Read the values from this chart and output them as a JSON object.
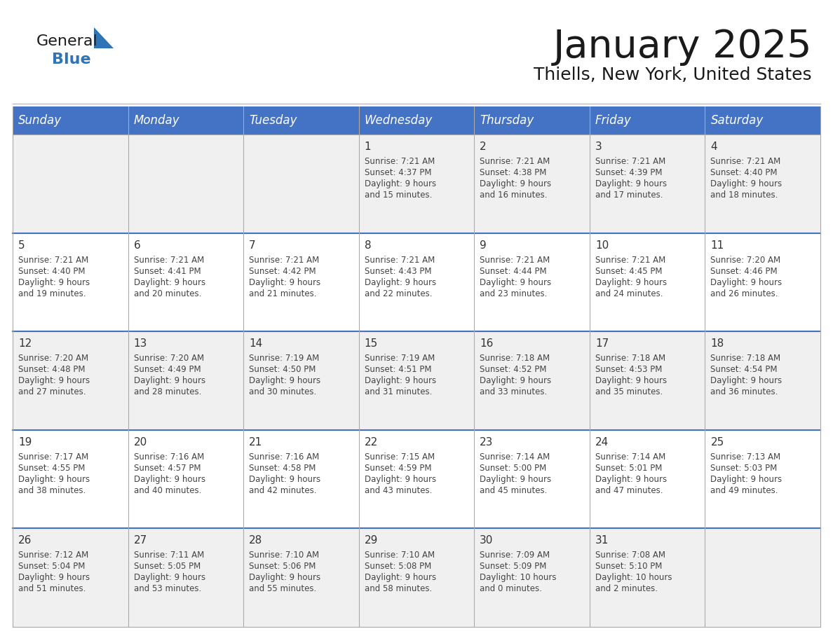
{
  "title": "January 2025",
  "subtitle": "Thiells, New York, United States",
  "days_of_week": [
    "Sunday",
    "Monday",
    "Tuesday",
    "Wednesday",
    "Thursday",
    "Friday",
    "Saturday"
  ],
  "header_bg_color": "#4472C4",
  "header_text_color": "#FFFFFF",
  "cell_bg_even": "#F0F0F0",
  "cell_bg_odd": "#FFFFFF",
  "cell_text_color": "#444444",
  "day_num_color": "#333333",
  "grid_line_color": "#AAAAAA",
  "title_color": "#1A1A1A",
  "subtitle_color": "#1A1A1A",
  "logo_black_color": "#1A1A1A",
  "logo_blue_color": "#2E75B6",
  "calendar_data": [
    {
      "week": 0,
      "dow": 3,
      "day": 1,
      "sunrise": "7:21 AM",
      "sunset": "4:37 PM",
      "daylight": "9 hours and 15 minutes."
    },
    {
      "week": 0,
      "dow": 4,
      "day": 2,
      "sunrise": "7:21 AM",
      "sunset": "4:38 PM",
      "daylight": "9 hours and 16 minutes."
    },
    {
      "week": 0,
      "dow": 5,
      "day": 3,
      "sunrise": "7:21 AM",
      "sunset": "4:39 PM",
      "daylight": "9 hours and 17 minutes."
    },
    {
      "week": 0,
      "dow": 6,
      "day": 4,
      "sunrise": "7:21 AM",
      "sunset": "4:40 PM",
      "daylight": "9 hours and 18 minutes."
    },
    {
      "week": 1,
      "dow": 0,
      "day": 5,
      "sunrise": "7:21 AM",
      "sunset": "4:40 PM",
      "daylight": "9 hours and 19 minutes."
    },
    {
      "week": 1,
      "dow": 1,
      "day": 6,
      "sunrise": "7:21 AM",
      "sunset": "4:41 PM",
      "daylight": "9 hours and 20 minutes."
    },
    {
      "week": 1,
      "dow": 2,
      "day": 7,
      "sunrise": "7:21 AM",
      "sunset": "4:42 PM",
      "daylight": "9 hours and 21 minutes."
    },
    {
      "week": 1,
      "dow": 3,
      "day": 8,
      "sunrise": "7:21 AM",
      "sunset": "4:43 PM",
      "daylight": "9 hours and 22 minutes."
    },
    {
      "week": 1,
      "dow": 4,
      "day": 9,
      "sunrise": "7:21 AM",
      "sunset": "4:44 PM",
      "daylight": "9 hours and 23 minutes."
    },
    {
      "week": 1,
      "dow": 5,
      "day": 10,
      "sunrise": "7:21 AM",
      "sunset": "4:45 PM",
      "daylight": "9 hours and 24 minutes."
    },
    {
      "week": 1,
      "dow": 6,
      "day": 11,
      "sunrise": "7:20 AM",
      "sunset": "4:46 PM",
      "daylight": "9 hours and 26 minutes."
    },
    {
      "week": 2,
      "dow": 0,
      "day": 12,
      "sunrise": "7:20 AM",
      "sunset": "4:48 PM",
      "daylight": "9 hours and 27 minutes."
    },
    {
      "week": 2,
      "dow": 1,
      "day": 13,
      "sunrise": "7:20 AM",
      "sunset": "4:49 PM",
      "daylight": "9 hours and 28 minutes."
    },
    {
      "week": 2,
      "dow": 2,
      "day": 14,
      "sunrise": "7:19 AM",
      "sunset": "4:50 PM",
      "daylight": "9 hours and 30 minutes."
    },
    {
      "week": 2,
      "dow": 3,
      "day": 15,
      "sunrise": "7:19 AM",
      "sunset": "4:51 PM",
      "daylight": "9 hours and 31 minutes."
    },
    {
      "week": 2,
      "dow": 4,
      "day": 16,
      "sunrise": "7:18 AM",
      "sunset": "4:52 PM",
      "daylight": "9 hours and 33 minutes."
    },
    {
      "week": 2,
      "dow": 5,
      "day": 17,
      "sunrise": "7:18 AM",
      "sunset": "4:53 PM",
      "daylight": "9 hours and 35 minutes."
    },
    {
      "week": 2,
      "dow": 6,
      "day": 18,
      "sunrise": "7:18 AM",
      "sunset": "4:54 PM",
      "daylight": "9 hours and 36 minutes."
    },
    {
      "week": 3,
      "dow": 0,
      "day": 19,
      "sunrise": "7:17 AM",
      "sunset": "4:55 PM",
      "daylight": "9 hours and 38 minutes."
    },
    {
      "week": 3,
      "dow": 1,
      "day": 20,
      "sunrise": "7:16 AM",
      "sunset": "4:57 PM",
      "daylight": "9 hours and 40 minutes."
    },
    {
      "week": 3,
      "dow": 2,
      "day": 21,
      "sunrise": "7:16 AM",
      "sunset": "4:58 PM",
      "daylight": "9 hours and 42 minutes."
    },
    {
      "week": 3,
      "dow": 3,
      "day": 22,
      "sunrise": "7:15 AM",
      "sunset": "4:59 PM",
      "daylight": "9 hours and 43 minutes."
    },
    {
      "week": 3,
      "dow": 4,
      "day": 23,
      "sunrise": "7:14 AM",
      "sunset": "5:00 PM",
      "daylight": "9 hours and 45 minutes."
    },
    {
      "week": 3,
      "dow": 5,
      "day": 24,
      "sunrise": "7:14 AM",
      "sunset": "5:01 PM",
      "daylight": "9 hours and 47 minutes."
    },
    {
      "week": 3,
      "dow": 6,
      "day": 25,
      "sunrise": "7:13 AM",
      "sunset": "5:03 PM",
      "daylight": "9 hours and 49 minutes."
    },
    {
      "week": 4,
      "dow": 0,
      "day": 26,
      "sunrise": "7:12 AM",
      "sunset": "5:04 PM",
      "daylight": "9 hours and 51 minutes."
    },
    {
      "week": 4,
      "dow": 1,
      "day": 27,
      "sunrise": "7:11 AM",
      "sunset": "5:05 PM",
      "daylight": "9 hours and 53 minutes."
    },
    {
      "week": 4,
      "dow": 2,
      "day": 28,
      "sunrise": "7:10 AM",
      "sunset": "5:06 PM",
      "daylight": "9 hours and 55 minutes."
    },
    {
      "week": 4,
      "dow": 3,
      "day": 29,
      "sunrise": "7:10 AM",
      "sunset": "5:08 PM",
      "daylight": "9 hours and 58 minutes."
    },
    {
      "week": 4,
      "dow": 4,
      "day": 30,
      "sunrise": "7:09 AM",
      "sunset": "5:09 PM",
      "daylight": "10 hours and 0 minutes."
    },
    {
      "week": 4,
      "dow": 5,
      "day": 31,
      "sunrise": "7:08 AM",
      "sunset": "5:10 PM",
      "daylight": "10 hours and 2 minutes."
    }
  ],
  "fig_width": 11.88,
  "fig_height": 9.18,
  "dpi": 100
}
